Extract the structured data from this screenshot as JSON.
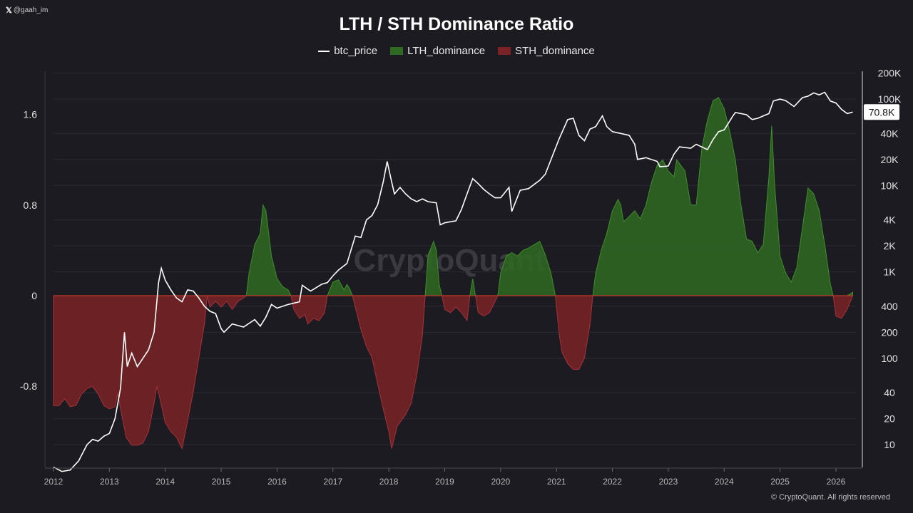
{
  "header": {
    "handle_icon": "x-logo-icon",
    "handle": "@gaah_im",
    "copyright": "© CryptoQuant. All rights reserved",
    "watermark": "CryptoQuant"
  },
  "chart_data": {
    "type": "area",
    "title": "LTH / STH Dominance Ratio",
    "legend": [
      {
        "name": "btc_price",
        "style": "line",
        "color": "#ffffff"
      },
      {
        "name": "LTH_dominance",
        "style": "area",
        "color": "#2f6a22"
      },
      {
        "name": "STH_dominance",
        "style": "area",
        "color": "#7a2226"
      }
    ],
    "x_ticks": [
      "2012",
      "2013",
      "2014",
      "2015",
      "2016",
      "2017",
      "2018",
      "2019",
      "2020",
      "2021",
      "2022",
      "2023",
      "2024",
      "2025",
      "2026"
    ],
    "x_range": [
      2012.0,
      2026.3
    ],
    "y_left": {
      "range": [
        -1.52,
        1.97
      ],
      "ticks": [
        1.6,
        0.8,
        0,
        -0.8
      ],
      "tick_labels": [
        "1.6",
        "0.8",
        "0",
        "-0.8"
      ]
    },
    "y_right": {
      "scale": "log",
      "range": [
        6,
        210000
      ],
      "ticks": [
        10,
        20,
        40,
        100,
        200,
        400,
        1000,
        2000,
        4000,
        10000,
        20000,
        40000,
        100000,
        200000
      ],
      "tick_labels": [
        "10",
        "20",
        "40",
        "100",
        "200",
        "400",
        "1K",
        "2K",
        "4K",
        "10K",
        "20K",
        "40K",
        "100K",
        "200K"
      ]
    },
    "last_price_label": "70.8K",
    "last_price": 70800,
    "dominance_ratio": [
      [
        2012.0,
        -0.97
      ],
      [
        2012.1,
        -0.97
      ],
      [
        2012.2,
        -0.91
      ],
      [
        2012.3,
        -0.98
      ],
      [
        2012.4,
        -0.97
      ],
      [
        2012.5,
        -0.87
      ],
      [
        2012.6,
        -0.82
      ],
      [
        2012.7,
        -0.8
      ],
      [
        2012.8,
        -0.87
      ],
      [
        2012.9,
        -0.97
      ],
      [
        2013.0,
        -1.0
      ],
      [
        2013.1,
        -0.98
      ],
      [
        2013.15,
        -0.86
      ],
      [
        2013.2,
        -1.0
      ],
      [
        2013.3,
        -1.25
      ],
      [
        2013.4,
        -1.32
      ],
      [
        2013.5,
        -1.32
      ],
      [
        2013.6,
        -1.3
      ],
      [
        2013.7,
        -1.2
      ],
      [
        2013.8,
        -0.95
      ],
      [
        2013.85,
        -0.8
      ],
      [
        2013.9,
        -0.9
      ],
      [
        2014.0,
        -1.12
      ],
      [
        2014.1,
        -1.2
      ],
      [
        2014.2,
        -1.25
      ],
      [
        2014.3,
        -1.35
      ],
      [
        2014.4,
        -1.1
      ],
      [
        2014.5,
        -0.85
      ],
      [
        2014.6,
        -0.55
      ],
      [
        2014.7,
        -0.25
      ],
      [
        2014.75,
        0.0
      ],
      [
        2014.8,
        -0.1
      ],
      [
        2014.9,
        -0.05
      ],
      [
        2015.0,
        -0.1
      ],
      [
        2015.1,
        -0.05
      ],
      [
        2015.2,
        -0.12
      ],
      [
        2015.3,
        -0.05
      ],
      [
        2015.4,
        -0.02
      ],
      [
        2015.45,
        0.0
      ],
      [
        2015.5,
        0.2
      ],
      [
        2015.6,
        0.45
      ],
      [
        2015.7,
        0.55
      ],
      [
        2015.75,
        0.8
      ],
      [
        2015.8,
        0.75
      ],
      [
        2015.9,
        0.35
      ],
      [
        2016.0,
        0.15
      ],
      [
        2016.1,
        0.08
      ],
      [
        2016.2,
        0.05
      ],
      [
        2016.25,
        0.0
      ],
      [
        2016.3,
        -0.12
      ],
      [
        2016.4,
        -0.2
      ],
      [
        2016.5,
        -0.17
      ],
      [
        2016.55,
        -0.25
      ],
      [
        2016.65,
        -0.2
      ],
      [
        2016.75,
        -0.22
      ],
      [
        2016.85,
        -0.15
      ],
      [
        2016.9,
        0.0
      ],
      [
        2017.0,
        0.12
      ],
      [
        2017.1,
        0.14
      ],
      [
        2017.2,
        0.05
      ],
      [
        2017.25,
        0.1
      ],
      [
        2017.3,
        0.06
      ],
      [
        2017.35,
        0.0
      ],
      [
        2017.4,
        -0.1
      ],
      [
        2017.5,
        -0.3
      ],
      [
        2017.6,
        -0.45
      ],
      [
        2017.7,
        -0.55
      ],
      [
        2017.8,
        -0.78
      ],
      [
        2017.9,
        -1.0
      ],
      [
        2018.0,
        -1.2
      ],
      [
        2018.05,
        -1.35
      ],
      [
        2018.15,
        -1.15
      ],
      [
        2018.3,
        -1.05
      ],
      [
        2018.4,
        -0.95
      ],
      [
        2018.5,
        -0.7
      ],
      [
        2018.6,
        -0.35
      ],
      [
        2018.65,
        0.0
      ],
      [
        2018.7,
        0.35
      ],
      [
        2018.8,
        0.48
      ],
      [
        2018.85,
        0.4
      ],
      [
        2018.9,
        0.1
      ],
      [
        2018.95,
        0.0
      ],
      [
        2019.0,
        -0.12
      ],
      [
        2019.1,
        -0.15
      ],
      [
        2019.2,
        -0.1
      ],
      [
        2019.3,
        -0.15
      ],
      [
        2019.4,
        -0.22
      ],
      [
        2019.45,
        0.0
      ],
      [
        2019.5,
        0.15
      ],
      [
        2019.55,
        0.0
      ],
      [
        2019.6,
        -0.15
      ],
      [
        2019.7,
        -0.18
      ],
      [
        2019.8,
        -0.15
      ],
      [
        2019.95,
        0.0
      ],
      [
        2020.0,
        0.2
      ],
      [
        2020.1,
        0.35
      ],
      [
        2020.2,
        0.38
      ],
      [
        2020.3,
        0.35
      ],
      [
        2020.4,
        0.4
      ],
      [
        2020.5,
        0.42
      ],
      [
        2020.6,
        0.45
      ],
      [
        2020.7,
        0.48
      ],
      [
        2020.8,
        0.36
      ],
      [
        2020.9,
        0.2
      ],
      [
        2020.98,
        0.0
      ],
      [
        2021.0,
        -0.1
      ],
      [
        2021.05,
        -0.35
      ],
      [
        2021.1,
        -0.5
      ],
      [
        2021.2,
        -0.6
      ],
      [
        2021.3,
        -0.65
      ],
      [
        2021.4,
        -0.65
      ],
      [
        2021.5,
        -0.55
      ],
      [
        2021.6,
        -0.25
      ],
      [
        2021.65,
        0.0
      ],
      [
        2021.7,
        0.2
      ],
      [
        2021.8,
        0.4
      ],
      [
        2021.9,
        0.55
      ],
      [
        2022.0,
        0.75
      ],
      [
        2022.1,
        0.85
      ],
      [
        2022.15,
        0.8
      ],
      [
        2022.2,
        0.65
      ],
      [
        2022.3,
        0.7
      ],
      [
        2022.4,
        0.75
      ],
      [
        2022.5,
        0.68
      ],
      [
        2022.6,
        0.8
      ],
      [
        2022.7,
        1.0
      ],
      [
        2022.8,
        1.15
      ],
      [
        2022.9,
        1.2
      ],
      [
        2023.0,
        1.1
      ],
      [
        2023.1,
        1.05
      ],
      [
        2023.15,
        1.2
      ],
      [
        2023.3,
        1.1
      ],
      [
        2023.4,
        0.8
      ],
      [
        2023.5,
        0.8
      ],
      [
        2023.6,
        1.3
      ],
      [
        2023.7,
        1.55
      ],
      [
        2023.8,
        1.72
      ],
      [
        2023.9,
        1.75
      ],
      [
        2024.0,
        1.65
      ],
      [
        2024.1,
        1.45
      ],
      [
        2024.2,
        1.2
      ],
      [
        2024.3,
        0.8
      ],
      [
        2024.4,
        0.5
      ],
      [
        2024.5,
        0.48
      ],
      [
        2024.6,
        0.38
      ],
      [
        2024.7,
        0.45
      ],
      [
        2024.8,
        1.05
      ],
      [
        2024.85,
        1.5
      ],
      [
        2024.9,
        1.0
      ],
      [
        2025.0,
        0.35
      ],
      [
        2025.1,
        0.2
      ],
      [
        2025.2,
        0.12
      ],
      [
        2025.3,
        0.25
      ],
      [
        2025.4,
        0.6
      ],
      [
        2025.5,
        0.95
      ],
      [
        2025.6,
        0.9
      ],
      [
        2025.7,
        0.75
      ],
      [
        2025.8,
        0.45
      ],
      [
        2025.9,
        0.1
      ],
      [
        2025.95,
        0.0
      ],
      [
        2026.0,
        -0.18
      ],
      [
        2026.1,
        -0.2
      ],
      [
        2026.2,
        -0.12
      ],
      [
        2026.3,
        0.03
      ]
    ],
    "btc_price": [
      [
        2012.0,
        5.5
      ],
      [
        2012.15,
        4.9
      ],
      [
        2012.3,
        5.1
      ],
      [
        2012.45,
        6.5
      ],
      [
        2012.6,
        10
      ],
      [
        2012.7,
        11.5
      ],
      [
        2012.8,
        11
      ],
      [
        2012.9,
        12.5
      ],
      [
        2013.0,
        13.5
      ],
      [
        2013.1,
        20
      ],
      [
        2013.2,
        45
      ],
      [
        2013.27,
        200
      ],
      [
        2013.32,
        80
      ],
      [
        2013.4,
        115
      ],
      [
        2013.5,
        80
      ],
      [
        2013.6,
        100
      ],
      [
        2013.7,
        125
      ],
      [
        2013.8,
        200
      ],
      [
        2013.88,
        750
      ],
      [
        2013.93,
        1100
      ],
      [
        2014.0,
        800
      ],
      [
        2014.1,
        620
      ],
      [
        2014.2,
        500
      ],
      [
        2014.3,
        450
      ],
      [
        2014.4,
        620
      ],
      [
        2014.5,
        600
      ],
      [
        2014.6,
        500
      ],
      [
        2014.7,
        400
      ],
      [
        2014.8,
        350
      ],
      [
        2014.9,
        330
      ],
      [
        2015.0,
        220
      ],
      [
        2015.05,
        200
      ],
      [
        2015.2,
        250
      ],
      [
        2015.4,
        230
      ],
      [
        2015.6,
        280
      ],
      [
        2015.7,
        235
      ],
      [
        2015.8,
        300
      ],
      [
        2015.9,
        420
      ],
      [
        2016.0,
        380
      ],
      [
        2016.2,
        420
      ],
      [
        2016.4,
        450
      ],
      [
        2016.45,
        700
      ],
      [
        2016.6,
        600
      ],
      [
        2016.8,
        720
      ],
      [
        2016.9,
        750
      ],
      [
        2017.0,
        900
      ],
      [
        2017.1,
        1050
      ],
      [
        2017.25,
        1250
      ],
      [
        2017.4,
        2600
      ],
      [
        2017.5,
        2500
      ],
      [
        2017.6,
        4000
      ],
      [
        2017.7,
        4500
      ],
      [
        2017.8,
        6000
      ],
      [
        2017.9,
        11000
      ],
      [
        2017.97,
        19000
      ],
      [
        2018.05,
        11000
      ],
      [
        2018.1,
        8000
      ],
      [
        2018.2,
        9500
      ],
      [
        2018.3,
        8000
      ],
      [
        2018.4,
        7000
      ],
      [
        2018.5,
        6500
      ],
      [
        2018.6,
        7000
      ],
      [
        2018.7,
        6500
      ],
      [
        2018.85,
        6300
      ],
      [
        2018.92,
        3500
      ],
      [
        2019.0,
        3700
      ],
      [
        2019.2,
        3900
      ],
      [
        2019.3,
        5300
      ],
      [
        2019.4,
        8000
      ],
      [
        2019.5,
        12000
      ],
      [
        2019.6,
        10500
      ],
      [
        2019.7,
        9000
      ],
      [
        2019.8,
        8000
      ],
      [
        2019.9,
        7200
      ],
      [
        2020.0,
        7200
      ],
      [
        2020.15,
        9500
      ],
      [
        2020.2,
        5000
      ],
      [
        2020.35,
        8800
      ],
      [
        2020.5,
        9200
      ],
      [
        2020.7,
        11500
      ],
      [
        2020.8,
        13500
      ],
      [
        2020.95,
        24000
      ],
      [
        2021.05,
        35000
      ],
      [
        2021.2,
        58000
      ],
      [
        2021.3,
        60000
      ],
      [
        2021.4,
        38000
      ],
      [
        2021.5,
        33000
      ],
      [
        2021.6,
        45000
      ],
      [
        2021.7,
        48000
      ],
      [
        2021.82,
        64000
      ],
      [
        2021.9,
        48000
      ],
      [
        2022.0,
        42000
      ],
      [
        2022.15,
        40000
      ],
      [
        2022.3,
        38000
      ],
      [
        2022.4,
        30000
      ],
      [
        2022.45,
        20000
      ],
      [
        2022.6,
        21000
      ],
      [
        2022.8,
        19000
      ],
      [
        2022.85,
        16500
      ],
      [
        2023.0,
        16800
      ],
      [
        2023.1,
        23000
      ],
      [
        2023.2,
        28000
      ],
      [
        2023.4,
        27000
      ],
      [
        2023.5,
        30000
      ],
      [
        2023.7,
        26000
      ],
      [
        2023.8,
        34000
      ],
      [
        2023.9,
        42000
      ],
      [
        2024.0,
        44000
      ],
      [
        2024.15,
        63000
      ],
      [
        2024.2,
        70000
      ],
      [
        2024.4,
        66000
      ],
      [
        2024.5,
        58000
      ],
      [
        2024.6,
        60000
      ],
      [
        2024.8,
        68000
      ],
      [
        2024.88,
        95000
      ],
      [
        2025.0,
        100000
      ],
      [
        2025.1,
        96000
      ],
      [
        2025.25,
        82000
      ],
      [
        2025.4,
        104000
      ],
      [
        2025.5,
        108000
      ],
      [
        2025.6,
        118000
      ],
      [
        2025.7,
        112000
      ],
      [
        2025.8,
        120000
      ],
      [
        2025.9,
        95000
      ],
      [
        2026.0,
        90000
      ],
      [
        2026.1,
        76000
      ],
      [
        2026.2,
        68000
      ],
      [
        2026.3,
        70800
      ]
    ]
  }
}
